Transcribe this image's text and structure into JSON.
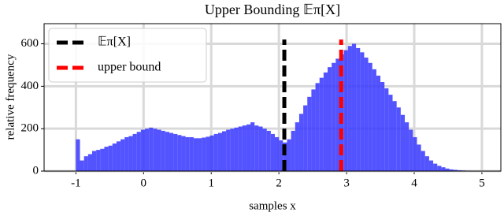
{
  "chart_data": {
    "type": "histogram",
    "title": "Upper Bounding 𝔼π[X]",
    "xlabel": "samples x",
    "ylabel": "relative frequency",
    "color": "#3535ff",
    "bins": [
      -1,
      -0.94,
      -0.88,
      -0.82,
      -0.76,
      -0.7,
      -0.64,
      -0.58,
      -0.52,
      -0.46,
      -0.4,
      -0.34,
      -0.28,
      -0.22,
      -0.16,
      -0.1,
      -0.04,
      0.02,
      0.08,
      0.14,
      0.2,
      0.26,
      0.32,
      0.38,
      0.44,
      0.5,
      0.56,
      0.62,
      0.68,
      0.74,
      0.8,
      0.86,
      0.92,
      0.98,
      1.04,
      1.1,
      1.16,
      1.22,
      1.28,
      1.34,
      1.4,
      1.46,
      1.52,
      1.58,
      1.64,
      1.7,
      1.76,
      1.82,
      1.88,
      1.94,
      2,
      2.06,
      2.12,
      2.18,
      2.24,
      2.3,
      2.36,
      2.42,
      2.48,
      2.54,
      2.6,
      2.66,
      2.72,
      2.78,
      2.84,
      2.9,
      2.96,
      3.02,
      3.08,
      3.14,
      3.2,
      3.26,
      3.32,
      3.38,
      3.44,
      3.5,
      3.56,
      3.62,
      3.68,
      3.74,
      3.8,
      3.86,
      3.92,
      3.98,
      4.04,
      4.1,
      4.16,
      4.22,
      4.28,
      4.34,
      4.4,
      4.46,
      4.52,
      4.58,
      4.64,
      4.7,
      4.76,
      4.82,
      4.88,
      4.94,
      5
    ],
    "counts": [
      150,
      50,
      70,
      80,
      95,
      100,
      105,
      115,
      120,
      130,
      140,
      150,
      160,
      165,
      175,
      185,
      195,
      200,
      205,
      200,
      195,
      190,
      185,
      180,
      175,
      170,
      165,
      160,
      160,
      155,
      155,
      158,
      162,
      168,
      175,
      180,
      188,
      195,
      200,
      205,
      210,
      215,
      220,
      230,
      215,
      210,
      200,
      190,
      175,
      160,
      145,
      135,
      150,
      190,
      230,
      270,
      310,
      350,
      385,
      415,
      440,
      465,
      490,
      510,
      530,
      550,
      570,
      590,
      600,
      580,
      560,
      535,
      510,
      480,
      450,
      420,
      390,
      360,
      330,
      300,
      265,
      230,
      195,
      160,
      125,
      95,
      70,
      50,
      35,
      25,
      18,
      12,
      8,
      6,
      4,
      3,
      2,
      1,
      1,
      1
    ],
    "vlines": [
      {
        "name": "𝔼π[X]",
        "x": 2.08,
        "ymax": 620,
        "color": "#000000"
      },
      {
        "name": "upper bound",
        "x": 2.92,
        "ymax": 620,
        "color": "#ff0000"
      }
    ],
    "xlim": [
      -1.47,
      5.28
    ],
    "xticks": [
      -1,
      0,
      1,
      2,
      3,
      4,
      5
    ],
    "ylim": [
      0,
      695
    ],
    "yticks": [
      0,
      200,
      400,
      600
    ],
    "grid": true,
    "legend": "upper left"
  }
}
